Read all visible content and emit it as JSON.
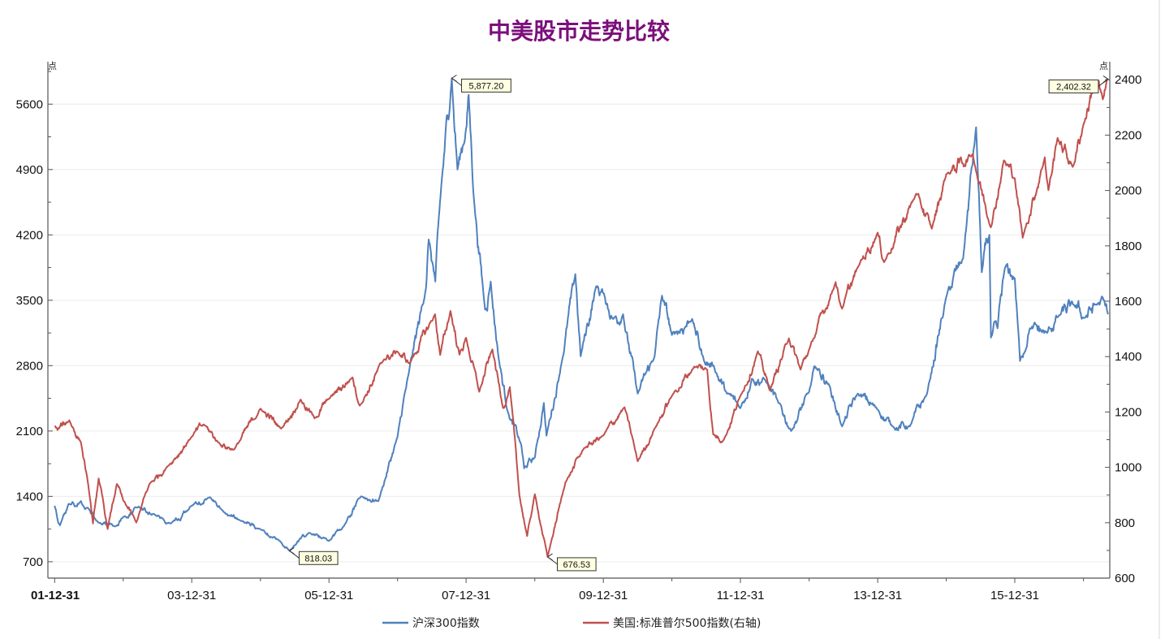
{
  "chart_data": {
    "type": "line",
    "title": "中美股市走势比较",
    "title_color": "#7B0F7B",
    "left_axis_unit": "点",
    "right_axis_unit": "点",
    "x_ticks": [
      "01-12-31",
      "03-12-31",
      "05-12-31",
      "07-12-31",
      "09-12-31",
      "11-12-31",
      "13-12-31",
      "15-12-31"
    ],
    "y_left": {
      "range": [
        525,
        5950
      ],
      "ticks": [
        700,
        1400,
        2100,
        2800,
        3500,
        4200,
        4900,
        5600
      ]
    },
    "y_right": {
      "range": [
        600,
        2430
      ],
      "ticks": [
        600,
        800,
        1000,
        1200,
        1400,
        1600,
        1800,
        2000,
        2200,
        2400
      ]
    },
    "grid": "horizontal",
    "legend_position": "bottom",
    "series": [
      {
        "name": "沪深300指数",
        "axis": "left",
        "color": "#4F81BD",
        "points": [
          [
            "2001-12-31",
            1300
          ],
          [
            "2002-01-28",
            1090
          ],
          [
            "2002-03-15",
            1320
          ],
          [
            "2002-05-20",
            1350
          ],
          [
            "2002-06-25",
            1280
          ],
          [
            "2002-08-20",
            1120
          ],
          [
            "2002-11-20",
            1080
          ],
          [
            "2002-12-31",
            1180
          ],
          [
            "2003-03-15",
            1280
          ],
          [
            "2003-06-15",
            1210
          ],
          [
            "2003-09-10",
            1110
          ],
          [
            "2003-12-31",
            1300
          ],
          [
            "2004-04-07",
            1390
          ],
          [
            "2004-06-20",
            1230
          ],
          [
            "2004-09-15",
            1140
          ],
          [
            "2004-12-31",
            1050
          ],
          [
            "2005-04-15",
            920
          ],
          [
            "2005-06-03",
            818.03
          ],
          [
            "2005-09-15",
            1010
          ],
          [
            "2005-12-31",
            923
          ],
          [
            "2006-03-20",
            1080
          ],
          [
            "2006-06-20",
            1400
          ],
          [
            "2006-09-20",
            1350
          ],
          [
            "2006-12-31",
            2040
          ],
          [
            "2007-02-27",
            2700
          ],
          [
            "2007-05-29",
            3600
          ],
          [
            "2007-06-15",
            4150
          ],
          [
            "2007-07-20",
            3700
          ],
          [
            "2007-08-20",
            4700
          ],
          [
            "2007-10-16",
            5877.2
          ],
          [
            "2007-11-15",
            4900
          ],
          [
            "2007-12-31",
            5338
          ],
          [
            "2008-01-14",
            5700
          ],
          [
            "2008-02-10",
            4600
          ],
          [
            "2008-04-10",
            3400
          ],
          [
            "2008-05-10",
            3700
          ],
          [
            "2008-06-20",
            2900
          ],
          [
            "2008-08-10",
            2300
          ],
          [
            "2008-10-20",
            1950
          ],
          [
            "2008-11-04",
            1700
          ],
          [
            "2008-12-31",
            1817
          ],
          [
            "2009-02-17",
            2400
          ],
          [
            "2009-03-03",
            2050
          ],
          [
            "2009-05-20",
            2800
          ],
          [
            "2009-08-04",
            3780
          ],
          [
            "2009-09-01",
            2900
          ],
          [
            "2009-11-23",
            3650
          ],
          [
            "2009-12-31",
            3575
          ],
          [
            "2010-02-20",
            3300
          ],
          [
            "2010-04-15",
            3350
          ],
          [
            "2010-07-02",
            2500
          ],
          [
            "2010-09-30",
            2900
          ],
          [
            "2010-11-08",
            3550
          ],
          [
            "2010-12-31",
            3128
          ],
          [
            "2011-04-18",
            3300
          ],
          [
            "2011-06-20",
            2850
          ],
          [
            "2011-08-10",
            2800
          ],
          [
            "2011-10-20",
            2500
          ],
          [
            "2011-12-31",
            2345
          ],
          [
            "2012-03-01",
            2660
          ],
          [
            "2012-05-10",
            2650
          ],
          [
            "2012-07-20",
            2400
          ],
          [
            "2012-09-26",
            2100
          ],
          [
            "2012-12-31",
            2522
          ],
          [
            "2013-02-05",
            2780
          ],
          [
            "2013-04-15",
            2600
          ],
          [
            "2013-06-24",
            2150
          ],
          [
            "2013-09-15",
            2500
          ],
          [
            "2013-12-31",
            2330
          ],
          [
            "2014-03-20",
            2150
          ],
          [
            "2014-06-20",
            2150
          ],
          [
            "2014-09-20",
            2500
          ],
          [
            "2014-12-31",
            3533
          ],
          [
            "2015-03-31",
            3950
          ],
          [
            "2015-06-08",
            5353
          ],
          [
            "2015-07-08",
            3800
          ],
          [
            "2015-08-18",
            4200
          ],
          [
            "2015-08-26",
            3100
          ],
          [
            "2015-09-30",
            3200
          ],
          [
            "2015-11-09",
            3850
          ],
          [
            "2015-12-31",
            3731
          ],
          [
            "2016-01-28",
            2850
          ],
          [
            "2016-03-20",
            3200
          ],
          [
            "2016-06-20",
            3150
          ],
          [
            "2016-08-20",
            3330
          ],
          [
            "2016-11-10",
            3450
          ],
          [
            "2016-12-31",
            3310
          ],
          [
            "2017-03-20",
            3470
          ],
          [
            "2017-04-28",
            3440
          ],
          [
            "2017-05-11",
            3350
          ]
        ],
        "annotations": [
          {
            "label": "818.03",
            "date": "2005-06-03",
            "value": 818.03
          },
          {
            "label": "5,877.20",
            "date": "2007-10-16",
            "value": 5877.2
          }
        ]
      },
      {
        "name": "美国:标准普尔500指数(右轴)",
        "axis": "right",
        "color": "#C0504D",
        "points": [
          [
            "2001-12-31",
            1148
          ],
          [
            "2002-01-15",
            1135
          ],
          [
            "2002-03-19",
            1170
          ],
          [
            "2002-05-20",
            1090
          ],
          [
            "2002-06-25",
            950
          ],
          [
            "2002-07-23",
            797
          ],
          [
            "2002-08-22",
            960
          ],
          [
            "2002-10-09",
            777
          ],
          [
            "2002-11-27",
            940
          ],
          [
            "2002-12-31",
            880
          ],
          [
            "2003-03-11",
            801
          ],
          [
            "2003-05-20",
            940
          ],
          [
            "2003-08-20",
            1000
          ],
          [
            "2003-12-31",
            1111
          ],
          [
            "2004-03-05",
            1155
          ],
          [
            "2004-05-20",
            1090
          ],
          [
            "2004-08-12",
            1064
          ],
          [
            "2004-12-31",
            1212
          ],
          [
            "2005-04-20",
            1140
          ],
          [
            "2005-08-02",
            1245
          ],
          [
            "2005-10-15",
            1177
          ],
          [
            "2005-12-31",
            1248
          ],
          [
            "2006-05-05",
            1325
          ],
          [
            "2006-06-13",
            1223
          ],
          [
            "2006-10-20",
            1390
          ],
          [
            "2006-12-31",
            1418
          ],
          [
            "2007-03-05",
            1375
          ],
          [
            "2007-07-19",
            1553
          ],
          [
            "2007-08-15",
            1406
          ],
          [
            "2007-10-09",
            1565
          ],
          [
            "2007-11-26",
            1407
          ],
          [
            "2007-12-31",
            1468
          ],
          [
            "2008-03-10",
            1273
          ],
          [
            "2008-05-19",
            1426
          ],
          [
            "2008-07-15",
            1214
          ],
          [
            "2008-08-20",
            1290
          ],
          [
            "2008-10-10",
            899
          ],
          [
            "2008-11-20",
            752
          ],
          [
            "2008-12-31",
            903
          ],
          [
            "2009-03-09",
            677
          ],
          [
            "2009-06-12",
            946
          ],
          [
            "2009-09-20",
            1070
          ],
          [
            "2009-12-31",
            1115
          ],
          [
            "2010-04-23",
            1217
          ],
          [
            "2010-07-02",
            1022
          ],
          [
            "2010-09-30",
            1140
          ],
          [
            "2010-12-31",
            1258
          ],
          [
            "2011-04-29",
            1364
          ],
          [
            "2011-07-07",
            1353
          ],
          [
            "2011-08-08",
            1119
          ],
          [
            "2011-10-03",
            1099
          ],
          [
            "2011-12-31",
            1258
          ],
          [
            "2012-04-02",
            1419
          ],
          [
            "2012-06-04",
            1278
          ],
          [
            "2012-09-14",
            1466
          ],
          [
            "2012-11-15",
            1353
          ],
          [
            "2012-12-31",
            1426
          ],
          [
            "2013-05-21",
            1669
          ],
          [
            "2013-06-24",
            1573
          ],
          [
            "2013-09-18",
            1725
          ],
          [
            "2013-12-31",
            1848
          ],
          [
            "2014-02-03",
            1741
          ],
          [
            "2014-07-24",
            1988
          ],
          [
            "2014-10-15",
            1862
          ],
          [
            "2014-12-31",
            2059
          ],
          [
            "2015-05-21",
            2131
          ],
          [
            "2015-08-25",
            1867
          ],
          [
            "2015-11-03",
            2109
          ],
          [
            "2015-12-31",
            2044
          ],
          [
            "2016-02-11",
            1829
          ],
          [
            "2016-06-08",
            2120
          ],
          [
            "2016-06-27",
            2001
          ],
          [
            "2016-08-15",
            2190
          ],
          [
            "2016-11-04",
            2085
          ],
          [
            "2016-12-31",
            2239
          ],
          [
            "2017-03-01",
            2396
          ],
          [
            "2017-04-13",
            2329
          ],
          [
            "2017-05-11",
            2402.32
          ]
        ],
        "annotations": [
          {
            "label": "676.53",
            "date": "2009-03-09",
            "value": 676.53
          },
          {
            "label": "2,402.32",
            "date": "2017-05-11",
            "value": 2402.32
          }
        ]
      }
    ]
  }
}
